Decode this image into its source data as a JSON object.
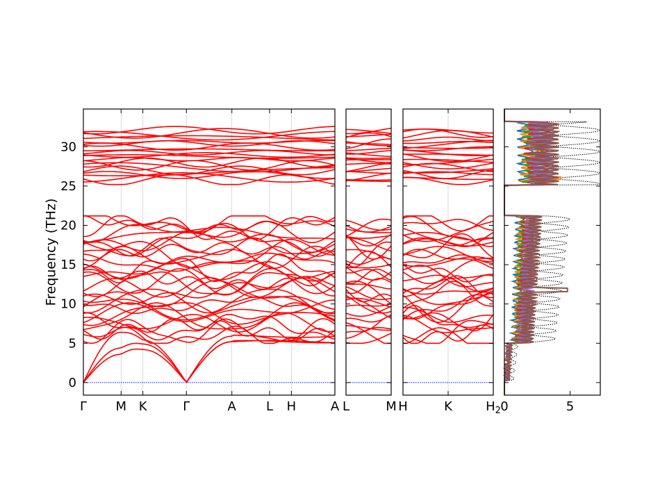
{
  "chart_data": {
    "type": "line",
    "ylabel": "Frequency (THz)",
    "ylim": [
      -1.6,
      34.8
    ],
    "yticks": [
      0,
      5,
      10,
      15,
      20,
      25,
      30
    ],
    "colors": {
      "bands": "#ff0000",
      "zero_line": "#0000ff",
      "dos_total": "#000000",
      "pdos": [
        "#1f77b4",
        "#ff7f0e",
        "#2ca02c",
        "#d62728",
        "#9467bd",
        "#8c564b"
      ]
    },
    "band_panels": [
      {
        "segments": [
          "Γ-M",
          "M-K",
          "K-Γ",
          "Γ-A",
          "A-L",
          "L-H",
          "H-A"
        ],
        "xticks": [
          {
            "label": "Γ",
            "x": 0.0
          },
          {
            "label": "M",
            "x": 0.5
          },
          {
            "label": "K",
            "x": 0.789
          },
          {
            "label": "Γ",
            "x": 1.366
          },
          {
            "label": "A",
            "x": 1.969
          },
          {
            "label": "L",
            "x": 2.469
          },
          {
            "label": "H",
            "x": 2.758
          },
          {
            "label": "A",
            "x": 3.335
          }
        ],
        "xlim": [
          0,
          3.335
        ]
      },
      {
        "segments": [
          "L-M"
        ],
        "xticks": [
          {
            "label": "L",
            "x": 0.0
          },
          {
            "label": "M",
            "x": 0.603
          }
        ],
        "xlim": [
          0,
          0.603
        ]
      },
      {
        "segments": [
          "H-K-H2"
        ],
        "xticks": [
          {
            "label": "H",
            "x": 0.0
          },
          {
            "label": "K",
            "x": 0.603
          },
          {
            "label": "H",
            "sub": "2",
            "x": 1.206
          }
        ],
        "xlim": [
          0,
          1.206
        ]
      }
    ],
    "dos_panel": {
      "xlim": [
        0,
        7.3
      ],
      "xticks": [
        0,
        5
      ],
      "series": [
        {
          "style": "dotted",
          "color": "#000000"
        },
        {
          "color": "#1f77b4"
        },
        {
          "color": "#ff7f0e"
        },
        {
          "color": "#2ca02c"
        },
        {
          "color": "#d62728"
        },
        {
          "color": "#9467bd"
        },
        {
          "color": "#8c564b"
        }
      ]
    }
  }
}
